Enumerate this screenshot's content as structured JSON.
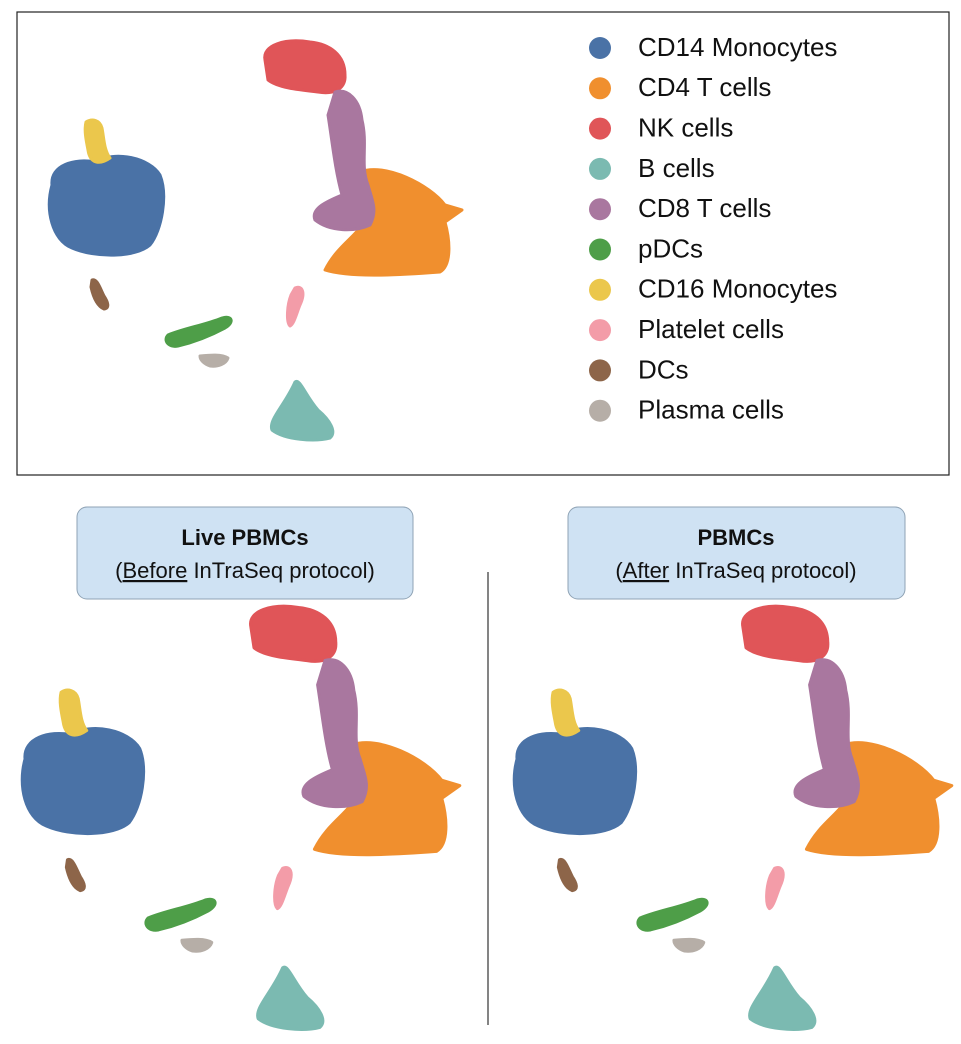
{
  "legend": {
    "items": [
      {
        "label": "CD14 Monocytes",
        "color": "#4a72a6"
      },
      {
        "label": "CD4 T cells",
        "color": "#f08f2e"
      },
      {
        "label": "NK cells",
        "color": "#e05558"
      },
      {
        "label": "B cells",
        "color": "#7bbab1"
      },
      {
        "label": "CD8 T cells",
        "color": "#a9779f"
      },
      {
        "label": "pDCs",
        "color": "#4e9e48"
      },
      {
        "label": "CD16 Monocytes",
        "color": "#ebc74c"
      },
      {
        "label": "Platelet cells",
        "color": "#f39ca8"
      },
      {
        "label": "DCs",
        "color": "#8d6549"
      },
      {
        "label": "Plasma cells",
        "color": "#b6aea7"
      }
    ]
  },
  "panels": [
    {
      "title": "Live PBMCs",
      "subtitle": [
        "(",
        "Before",
        " InTraSeq protocol)"
      ]
    },
    {
      "title": "PBMCs",
      "subtitle": [
        "(",
        "After",
        " InTraSeq protocol)"
      ]
    }
  ]
}
